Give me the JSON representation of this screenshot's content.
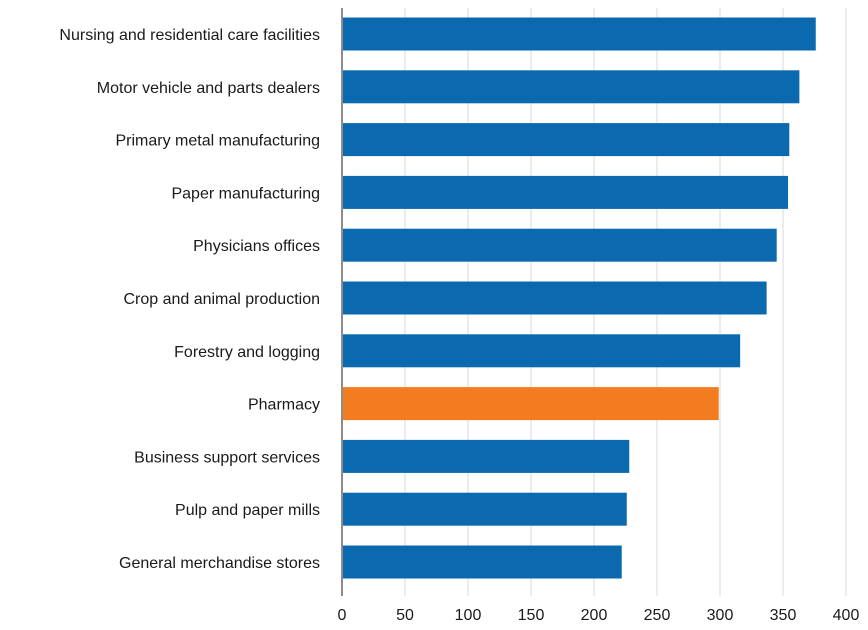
{
  "chart_data": {
    "type": "bar",
    "orientation": "horizontal",
    "title": "",
    "xlabel": "",
    "ylabel": "",
    "categories": [
      "Nursing and residential care facilities",
      "Motor vehicle and parts dealers",
      "Primary metal manufacturing",
      "Paper manufacturing",
      "Physicians offices",
      "Crop and animal production",
      "Forestry and logging",
      "Pharmacy",
      "Business support services",
      "Pulp and paper mills",
      "General merchandise stores"
    ],
    "values": [
      376,
      363,
      355,
      354,
      345,
      337,
      316,
      299,
      228,
      226,
      222
    ],
    "highlight_index": 7,
    "xlim": [
      0,
      400
    ],
    "xticks": [
      "0",
      "50",
      "100",
      "150",
      "200",
      "250",
      "300",
      "350",
      "400"
    ],
    "grid": "vertical",
    "colors": {
      "bar": "#0b6aaf",
      "highlight": "#f47c20"
    }
  }
}
